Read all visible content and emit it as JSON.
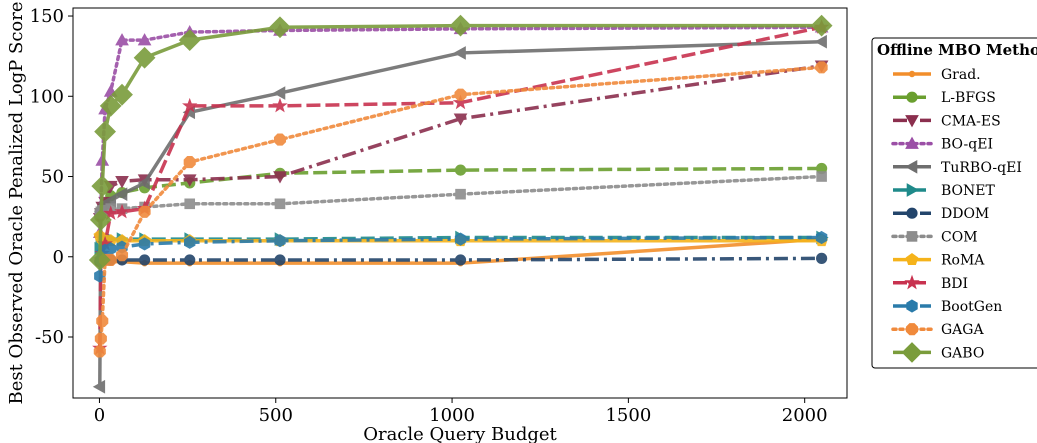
{
  "chart_data": {
    "type": "line",
    "title": "",
    "xlabel": "Oracle Query Budget",
    "ylabel": "Best Observed Oracle Penalized LogP Score",
    "xlim": [
      -75,
      2120
    ],
    "ylim": [
      -88,
      155
    ],
    "x_ticks": [
      0,
      500,
      1000,
      1500,
      2000
    ],
    "y_ticks": [
      -50,
      0,
      50,
      100,
      150
    ],
    "grid": false,
    "legend": {
      "title": "Offline MBO Method",
      "placement": "outside-right"
    },
    "series": [
      {
        "name": "Grad.",
        "color": "#F28E2B",
        "linestyle": "solid",
        "marker": "dot",
        "x": [
          1,
          4,
          8,
          16,
          32,
          64,
          128,
          256,
          512,
          1024,
          2048
        ],
        "y": [
          -1,
          -2,
          -2,
          -3,
          -3,
          -3,
          -4,
          -4,
          -4,
          -4,
          11
        ]
      },
      {
        "name": "L-BFGS",
        "color": "#6A9F2F",
        "linestyle": "dashed",
        "marker": "circle",
        "x": [
          1,
          4,
          8,
          16,
          32,
          64,
          128,
          256,
          512,
          1024,
          2048
        ],
        "y": [
          25,
          27,
          30,
          33,
          38,
          40,
          43,
          46,
          52,
          54,
          55
        ]
      },
      {
        "name": "CMA-ES",
        "color": "#8B2F4E",
        "linestyle": "dashdot",
        "marker": "triangle-down",
        "x": [
          1,
          4,
          8,
          16,
          32,
          64,
          128,
          256,
          512,
          1024,
          2048
        ],
        "y": [
          24,
          27,
          31,
          34,
          44,
          47,
          48,
          48,
          50,
          86,
          119
        ]
      },
      {
        "name": "BO-qEI",
        "color": "#9B4FA6",
        "linestyle": "dotted",
        "marker": "triangle-up",
        "x": [
          1,
          4,
          8,
          16,
          32,
          64,
          128,
          256,
          512,
          1024,
          2048
        ],
        "y": [
          15,
          30,
          60,
          92,
          103,
          135,
          135,
          140,
          141,
          142,
          143
        ]
      },
      {
        "name": "TuRBO-qEI",
        "color": "#6E6E6E",
        "linestyle": "solid",
        "marker": "triangle-left",
        "x": [
          1,
          4,
          8,
          16,
          32,
          64,
          128,
          256,
          512,
          1024,
          2048
        ],
        "y": [
          -81,
          28,
          30,
          33,
          35,
          39,
          46,
          90,
          102,
          127,
          134
        ]
      },
      {
        "name": "BONET",
        "color": "#1F8A8A",
        "linestyle": "dashed",
        "marker": "triangle-right",
        "x": [
          1,
          4,
          8,
          16,
          32,
          64,
          128,
          256,
          512,
          1024,
          2048
        ],
        "y": [
          5,
          7,
          9,
          10,
          11,
          11,
          11,
          11,
          11,
          12,
          12
        ]
      },
      {
        "name": "DDOM",
        "color": "#23456B",
        "linestyle": "dashdot",
        "marker": "circle",
        "x": [
          1,
          4,
          8,
          16,
          32,
          64,
          128,
          256,
          512,
          1024,
          2048
        ],
        "y": [
          -3,
          -2,
          -2,
          -2,
          -2,
          -2,
          -2,
          -2,
          -2,
          -2,
          -1
        ]
      },
      {
        "name": "COM",
        "color": "#8C8C8C",
        "linestyle": "dotted",
        "marker": "square",
        "x": [
          1,
          4,
          8,
          16,
          32,
          64,
          128,
          256,
          512,
          1024,
          2048
        ],
        "y": [
          27,
          28,
          29,
          29,
          30,
          30,
          31,
          33,
          33,
          39,
          50
        ]
      },
      {
        "name": "RoMA",
        "color": "#F5B31B",
        "linestyle": "solid",
        "marker": "pentagon",
        "x": [
          1,
          4,
          8,
          16,
          32,
          64,
          128,
          256,
          512,
          1024,
          2048
        ],
        "y": [
          13,
          12,
          11,
          11,
          10,
          10,
          10,
          10,
          10,
          10,
          10
        ]
      },
      {
        "name": "BDI",
        "color": "#C8324F",
        "linestyle": "dashed",
        "marker": "star",
        "x": [
          1,
          4,
          8,
          16,
          32,
          64,
          128,
          256,
          512,
          1024,
          2048
        ],
        "y": [
          -57,
          -2,
          2,
          8,
          27,
          28,
          30,
          94,
          94,
          96,
          143
        ]
      },
      {
        "name": "BootGen",
        "color": "#2A7BAA",
        "linestyle": "dashdot",
        "marker": "hexagon",
        "x": [
          1,
          4,
          8,
          16,
          32,
          64,
          128,
          256,
          512,
          1024,
          2048
        ],
        "y": [
          -12,
          -2,
          2,
          4,
          5,
          6,
          8,
          9,
          10,
          11,
          12
        ]
      },
      {
        "name": "GAGA",
        "color": "#F08A3C",
        "linestyle": "dotted",
        "marker": "octagon",
        "x": [
          1,
          4,
          8,
          16,
          32,
          64,
          128,
          256,
          512,
          1024,
          2048
        ],
        "y": [
          -59,
          -51,
          -40,
          -2,
          -2,
          1,
          28,
          59,
          73,
          101,
          118
        ]
      },
      {
        "name": "GABO",
        "color": "#7A9C3B",
        "linestyle": "solid",
        "marker": "diamond",
        "x": [
          1,
          4,
          8,
          16,
          32,
          64,
          128,
          256,
          512,
          1024,
          2048
        ],
        "y": [
          -2,
          23,
          44,
          78,
          94,
          101,
          124,
          135,
          143,
          144,
          144
        ]
      }
    ]
  }
}
